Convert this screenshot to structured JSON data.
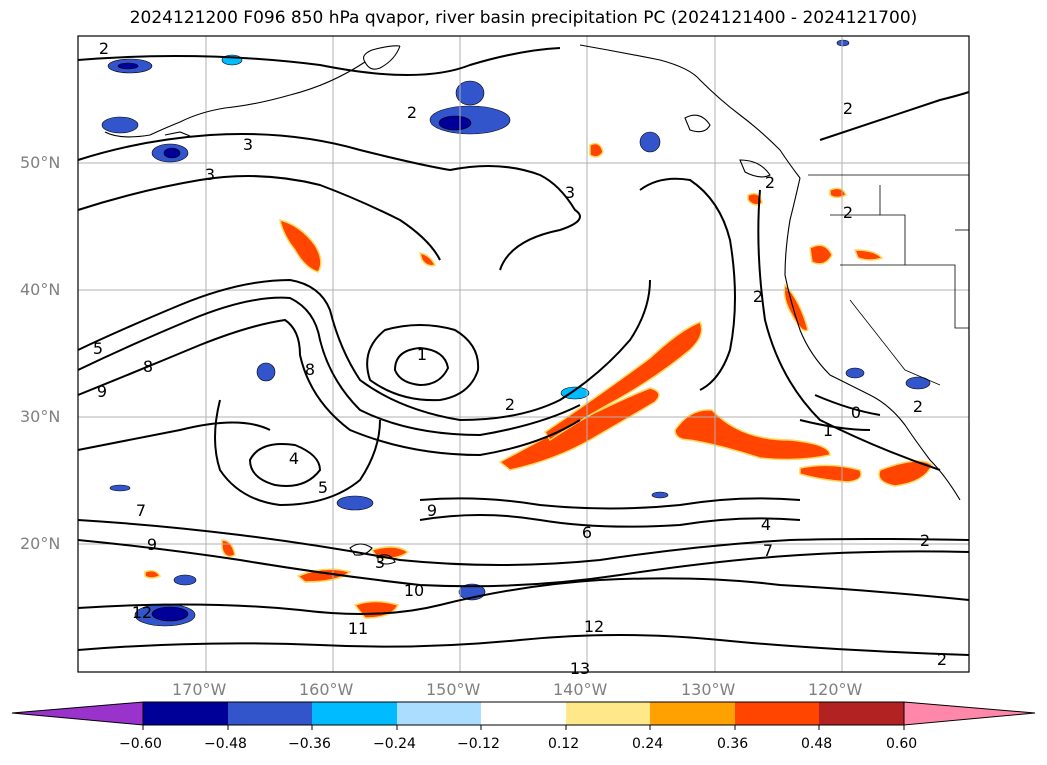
{
  "title": "2024121200 F096 850 hPa qvapor, river basin precipitation PC (2024121400 - 2024121700)",
  "lat_labels": [
    "50°N",
    "40°N",
    "30°N",
    "20°N"
  ],
  "lon_labels": [
    "170°W",
    "160°W",
    "150°W",
    "140°W",
    "130°W",
    "120°W"
  ],
  "contour_labels": [
    "2",
    "2",
    "2",
    "3",
    "3",
    "3",
    "2",
    "1",
    "2",
    "5",
    "8",
    "9",
    "8",
    "4",
    "5",
    "9",
    "7",
    "9",
    "6",
    "4",
    "7",
    "2",
    "1",
    "0",
    "2",
    "2",
    "10",
    "11",
    "12",
    "12",
    "13",
    "2",
    "3",
    "2"
  ],
  "colorbar": {
    "tick_labels": [
      "−0.60",
      "−0.48",
      "−0.36",
      "−0.24",
      "−0.12",
      "0.12",
      "0.24",
      "0.36",
      "0.48",
      "0.60"
    ],
    "colors": [
      "#9933cc",
      "#000099",
      "#3355cc",
      "#00bbff",
      "#aaddff",
      "#ffffff",
      "#ffe88a",
      "#ffa100",
      "#ff4500",
      "#b22222",
      "#ff88aa"
    ]
  }
}
